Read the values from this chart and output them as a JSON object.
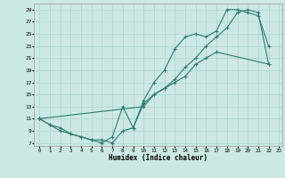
{
  "xlabel": "Humidex (Indice chaleur)",
  "bg_color": "#cce8e4",
  "line_color": "#2d7a6e",
  "grid_color": "#aad4cc",
  "xlim": [
    -0.5,
    23.3
  ],
  "ylim": [
    6.5,
    30.0
  ],
  "xticks": [
    0,
    1,
    2,
    3,
    4,
    5,
    6,
    7,
    8,
    9,
    10,
    11,
    12,
    13,
    14,
    15,
    16,
    17,
    18,
    19,
    20,
    21,
    22,
    23
  ],
  "yticks": [
    7,
    9,
    11,
    13,
    15,
    17,
    19,
    21,
    23,
    25,
    27,
    29
  ],
  "line1_x": [
    0,
    1,
    2,
    3,
    4,
    5,
    6,
    7,
    8,
    9,
    10,
    11,
    12,
    13,
    14,
    15,
    16,
    17,
    22
  ],
  "line1_y": [
    11,
    10,
    9,
    8.5,
    8,
    7.5,
    7.5,
    7,
    9,
    9.5,
    13.5,
    15,
    16,
    17,
    18,
    20,
    21,
    22,
    20
  ],
  "line2_x": [
    0,
    1,
    2,
    3,
    4,
    5,
    6,
    7,
    8,
    9,
    10,
    11,
    12,
    13,
    14,
    15,
    16,
    17,
    18,
    19,
    20,
    21,
    22
  ],
  "line2_y": [
    11,
    10,
    9.5,
    8.5,
    8,
    7.5,
    7,
    8,
    13,
    9.5,
    14,
    17,
    19,
    22.5,
    24.5,
    25,
    24.5,
    25.5,
    29,
    29,
    28.5,
    28,
    23
  ],
  "line3_x": [
    0,
    10,
    11,
    12,
    13,
    14,
    15,
    16,
    17,
    18,
    19,
    20,
    21,
    22
  ],
  "line3_y": [
    11,
    13,
    15,
    16,
    17.5,
    19.5,
    21,
    23,
    24.5,
    26,
    28.5,
    29,
    28.5,
    20
  ]
}
